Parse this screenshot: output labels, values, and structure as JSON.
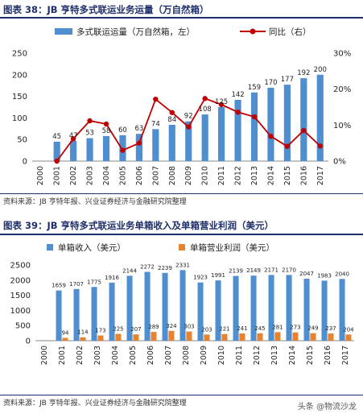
{
  "figure1": {
    "title": "图表 38：JB 亨特多式联运业务运量（万自然箱）",
    "source": "资料来源：JB 亨特年报、兴业证券经济与金融研究院整理"
  },
  "figure2": {
    "title": "图表 39：JB 亨特多式联运业务单箱收入及单箱营业利润（美元）",
    "source": "资料来源：JB 亨特年报、兴业证券经济与金融研究院整理"
  },
  "watermark": "头条 @物流沙龙",
  "colors": {
    "bar_blue": "#4f8fd0",
    "bar_orange": "#e8822c",
    "line_red": "#c00000",
    "title_navy": "#1f2f6b"
  },
  "chart_data": [
    {
      "type": "bar",
      "categories": [
        "2000",
        "2001",
        "2002",
        "2003",
        "2004",
        "2005",
        "2006",
        "2007",
        "2008",
        "2009",
        "2010",
        "2011",
        "2012",
        "2013",
        "2014",
        "2015",
        "2016",
        "2017"
      ],
      "series": [
        {
          "name": "多式联运运量（万自然箱，左）",
          "type": "bar",
          "values": [
            null,
            45,
            47,
            53,
            58,
            60,
            63,
            74,
            84,
            92,
            108,
            125,
            142,
            159,
            170,
            177,
            192,
            200
          ]
        },
        {
          "name": "同比（右）",
          "type": "line",
          "axis": "right",
          "values": [
            null,
            0.0,
            0.062,
            0.112,
            0.103,
            0.03,
            0.05,
            0.172,
            0.135,
            0.095,
            0.174,
            0.157,
            0.136,
            0.123,
            0.069,
            0.041,
            0.085,
            0.042
          ]
        }
      ],
      "ylim": [
        0,
        250
      ],
      "yticks": [
        "0",
        "50",
        "100",
        "150",
        "200",
        "250"
      ],
      "y2lim": [
        0,
        0.3
      ],
      "y2ticks": [
        "0%",
        "10%",
        "20%",
        "30%"
      ],
      "legend": "top"
    },
    {
      "type": "bar",
      "categories": [
        "2000",
        "2001",
        "2002",
        "2003",
        "2004",
        "2005",
        "2006",
        "2007",
        "2008",
        "2009",
        "2010",
        "2011",
        "2012",
        "2013",
        "2014",
        "2015",
        "2016",
        "2017"
      ],
      "series": [
        {
          "name": "单箱收入（美元）",
          "values": [
            null,
            1659,
            1707,
            1775,
            1916,
            2144,
            2272,
            2239,
            2331,
            1923,
            1991,
            2139,
            2149,
            2171,
            2170,
            2047,
            1983,
            2040
          ]
        },
        {
          "name": "单箱营业利润（美元）",
          "values": [
            null,
            94,
            114,
            173,
            225,
            207,
            289,
            324,
            303,
            203,
            221,
            241,
            245,
            281,
            273,
            249,
            237,
            204
          ]
        }
      ],
      "ylim": [
        0,
        2500
      ],
      "yticks": [
        "0",
        "500",
        "1000",
        "1500",
        "2000",
        "2500"
      ],
      "legend": "top"
    }
  ]
}
